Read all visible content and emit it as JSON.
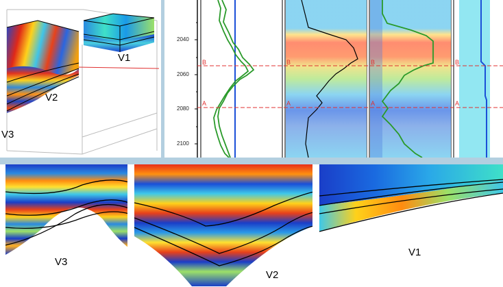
{
  "views": {
    "view3d": {
      "labels": [
        "V1",
        "V2",
        "V3"
      ]
    },
    "logs": {
      "depth_ticks": [
        "2040",
        "2060",
        "2080",
        "2100"
      ],
      "markers": [
        "B",
        "A"
      ]
    },
    "sections": {
      "labels": [
        "V3",
        "V2",
        "V1"
      ]
    }
  },
  "colors": {
    "divider": "#b3cfe0",
    "marker_line": "#e03030",
    "curve_green": "#2a9a2a",
    "curve_blue": "#1a4fd8",
    "horizon": "#000000"
  }
}
